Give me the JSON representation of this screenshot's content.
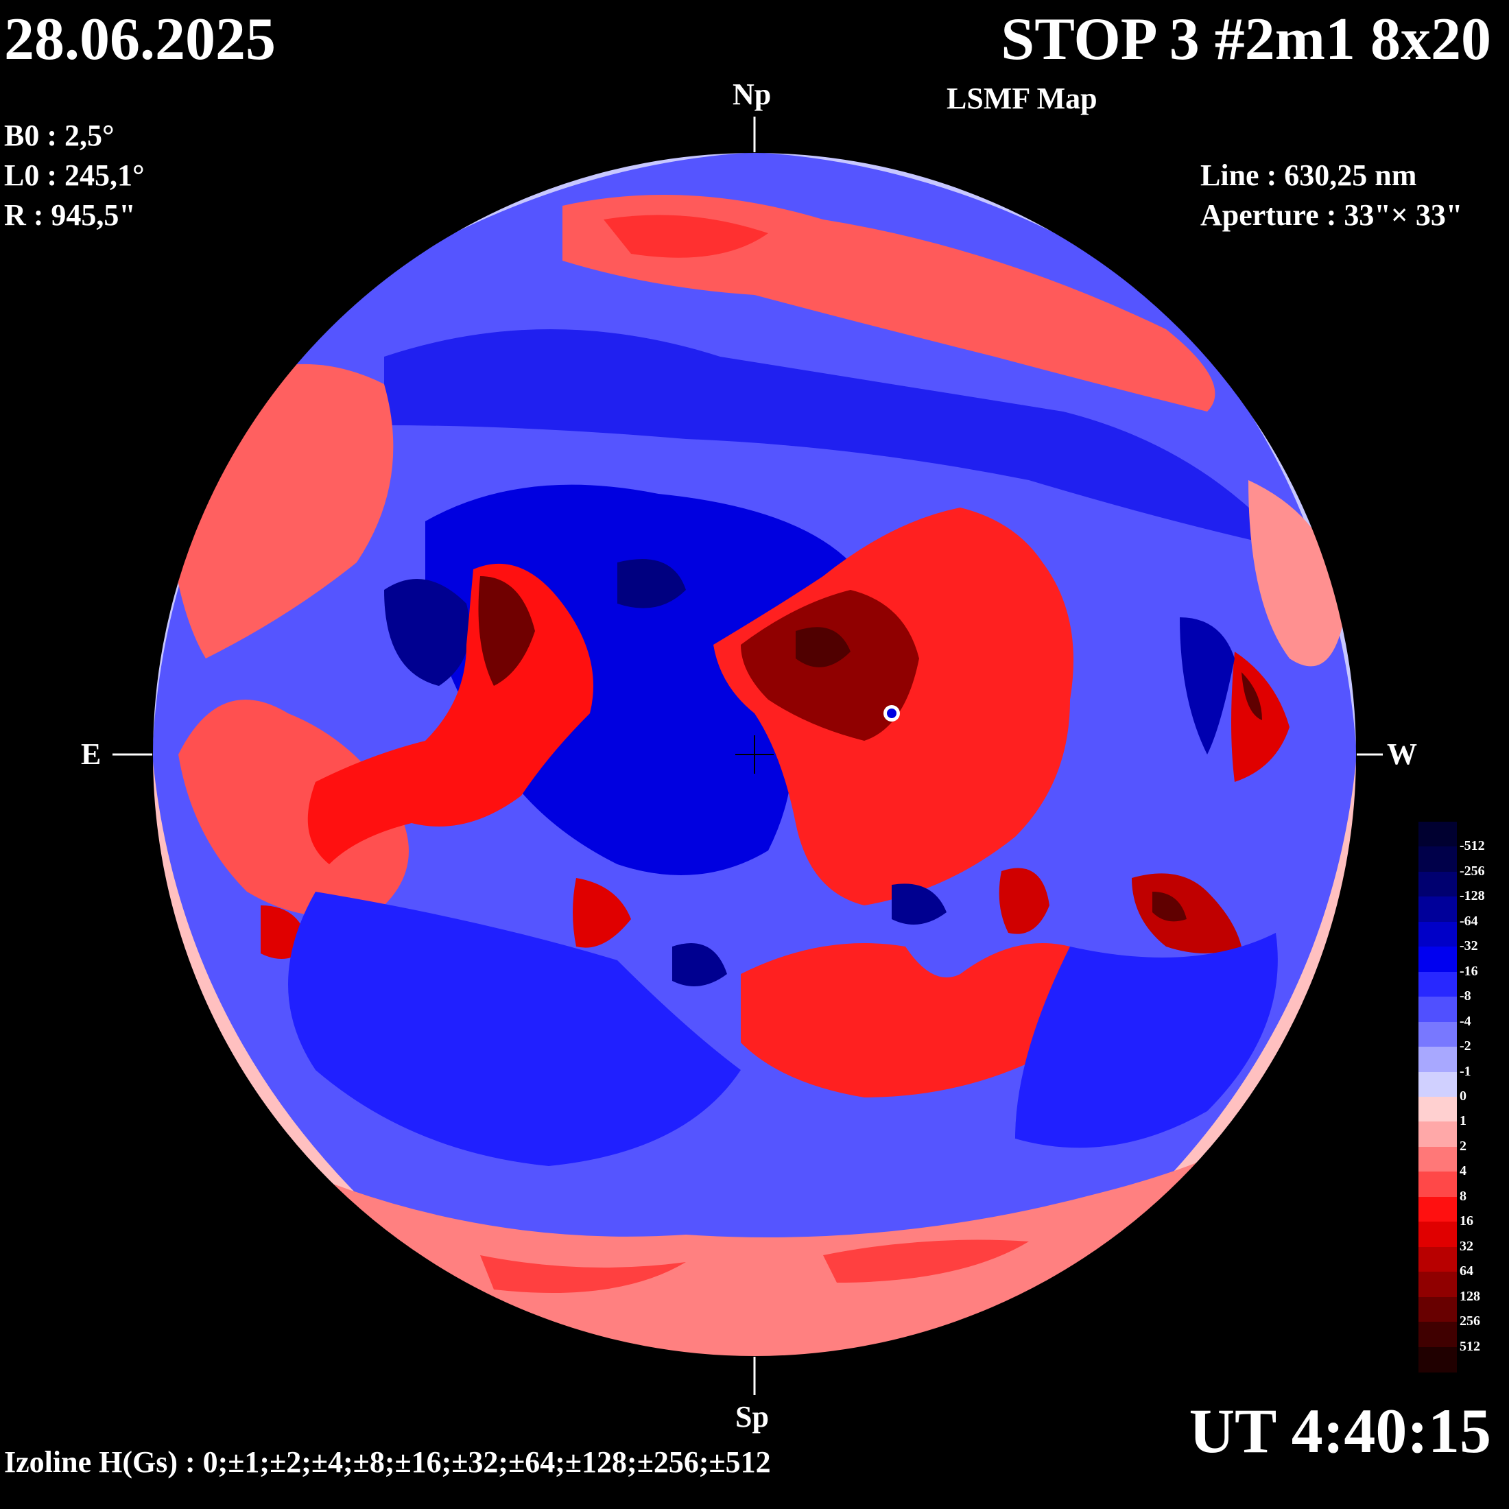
{
  "header": {
    "date": "28.06.2025",
    "title": "STOP 3 #2m1 8x20",
    "subtitle": "LSMF  Map"
  },
  "params": {
    "b0": "B0 : 2,5°",
    "l0": "L0 : 245,1°",
    "r": "R  : 945,5\""
  },
  "instrument": {
    "line": "Line :  630,25 nm",
    "aperture": "Aperture : 33\"× 33\""
  },
  "cardinals": {
    "north": "Np",
    "south": "Sp",
    "east": "E",
    "west": "W"
  },
  "footer": {
    "ut": "UT 4:40:15",
    "izoline": "Izoline H(Gs) : 0;±1;±2;±4;±8;±16;±32;±64;±128;±256;±512"
  },
  "scale": {
    "labels": [
      "-512",
      "-256",
      "-128",
      "-64",
      "-32",
      "-16",
      "-8",
      "-4",
      "-2",
      "-1",
      "0",
      "1",
      "2",
      "4",
      "8",
      "16",
      "32",
      "64",
      "128",
      "256",
      "512"
    ],
    "colors": [
      "#000030",
      "#00004a",
      "#000070",
      "#00009a",
      "#0000c8",
      "#0000f0",
      "#2828ff",
      "#5050ff",
      "#7878ff",
      "#a8a8ff",
      "#d0d0ff",
      "#ffd0d0",
      "#ffa8a8",
      "#ff7878",
      "#ff4848",
      "#ff1010",
      "#e00000",
      "#b80000",
      "#900000",
      "#680000",
      "#400000",
      "#200000"
    ]
  },
  "colors": {
    "disk_background": "#4a4aff",
    "positive_strong": "#c00000",
    "negative_strong": "#0000d8"
  }
}
